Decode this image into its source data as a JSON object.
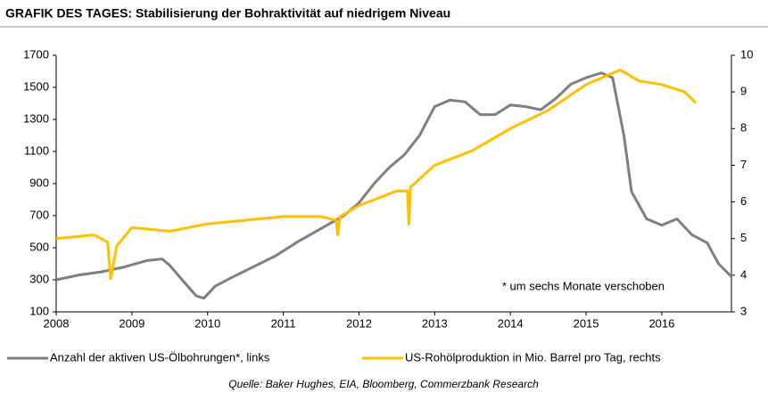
{
  "chart_data": {
    "type": "line",
    "title": "GRAFIK DES TAGES: Stabilisierung der Bohraktivität auf niedrigem Niveau",
    "source": "Quelle: Baker Hughes, EIA, Bloomberg, Commerzbank Research",
    "annotation": "* um sechs Monate verschoben",
    "xlim": [
      2008,
      2016.92
    ],
    "xticks": [
      2008,
      2009,
      2010,
      2011,
      2012,
      2013,
      2014,
      2015,
      2016
    ],
    "ylim": [
      100,
      1700
    ],
    "yticks": [
      100,
      300,
      500,
      700,
      900,
      1100,
      1300,
      1500,
      1700
    ],
    "y2lim": [
      3,
      10
    ],
    "y2ticks": [
      3,
      4,
      5,
      6,
      7,
      8,
      9,
      10
    ],
    "series": [
      {
        "name": "Anzahl der aktiven US-Ölbohrungen*, links",
        "color": "#7f7f7f",
        "axis": "y",
        "x": [
          2008,
          2008.3,
          2008.6,
          2008.9,
          2009.2,
          2009.4,
          2009.5,
          2009.7,
          2009.85,
          2009.95,
          2010.1,
          2010.3,
          2010.6,
          2010.9,
          2011.2,
          2011.5,
          2011.8,
          2012.0,
          2012.2,
          2012.4,
          2012.6,
          2012.8,
          2013.0,
          2013.2,
          2013.4,
          2013.6,
          2013.8,
          2014.0,
          2014.2,
          2014.4,
          2014.6,
          2014.8,
          2015.0,
          2015.2,
          2015.35,
          2015.5,
          2015.6,
          2015.8,
          2016.0,
          2016.2,
          2016.4,
          2016.6,
          2016.75,
          2016.92
        ],
        "values": [
          300,
          330,
          350,
          380,
          420,
          430,
          390,
          280,
          200,
          185,
          260,
          310,
          380,
          450,
          540,
          620,
          700,
          780,
          900,
          1000,
          1080,
          1200,
          1380,
          1420,
          1410,
          1330,
          1330,
          1390,
          1380,
          1360,
          1430,
          1520,
          1560,
          1590,
          1560,
          1200,
          850,
          680,
          640,
          680,
          580,
          530,
          400,
          320
        ]
      },
      {
        "name": "US-Rohölproduktion in Mio. Barrel pro Tag, rechts",
        "color": "#ffc000",
        "axis": "y2",
        "x": [
          2008,
          2008.5,
          2008.68,
          2008.72,
          2008.8,
          2009.0,
          2009.5,
          2010.0,
          2010.5,
          2011.0,
          2011.5,
          2011.7,
          2011.72,
          2011.75,
          2012.0,
          2012.5,
          2012.64,
          2012.66,
          2012.68,
          2013.0,
          2013.5,
          2014.0,
          2014.5,
          2015.0,
          2015.45,
          2015.7,
          2016.0,
          2016.3,
          2016.45
        ],
        "values": [
          5.0,
          5.1,
          4.9,
          3.9,
          4.8,
          5.3,
          5.2,
          5.4,
          5.5,
          5.6,
          5.6,
          5.5,
          5.1,
          5.6,
          5.9,
          6.3,
          6.3,
          5.4,
          6.4,
          7.0,
          7.4,
          8.0,
          8.5,
          9.2,
          9.6,
          9.3,
          9.2,
          9.0,
          8.7
        ]
      }
    ]
  }
}
